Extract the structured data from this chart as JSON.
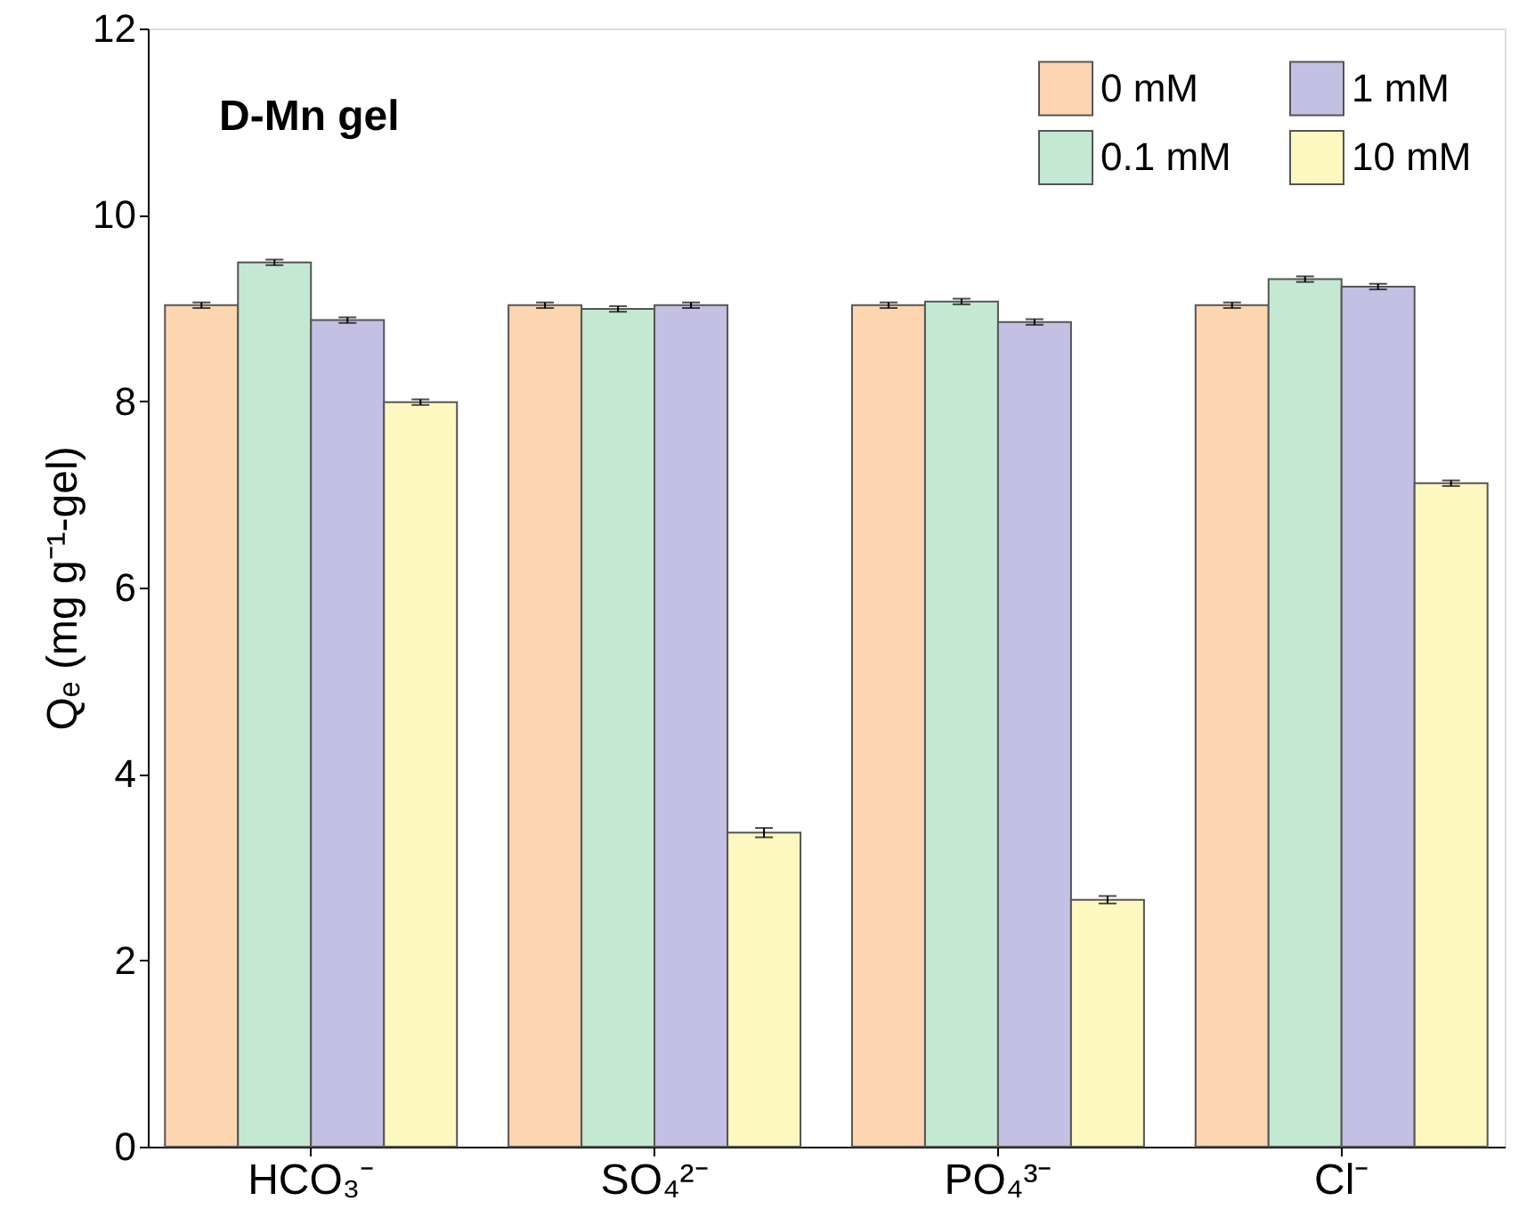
{
  "chart_data": {
    "type": "bar",
    "categories": [
      "HCO₃⁻",
      "SO₄²⁻",
      "PO₄³⁻",
      "Cl⁻"
    ],
    "series": [
      {
        "name": "0 mM",
        "color": "#fdd5b0",
        "values": [
          9.03,
          9.03,
          9.03,
          9.03
        ],
        "errors": [
          0.03,
          0.03,
          0.03,
          0.03
        ]
      },
      {
        "name": "0.1 mM",
        "color": "#c5e8d3",
        "values": [
          9.49,
          8.99,
          9.07,
          9.31
        ],
        "errors": [
          0.03,
          0.03,
          0.03,
          0.03
        ]
      },
      {
        "name": "1 mM",
        "color": "#c4c0e3",
        "values": [
          8.87,
          9.03,
          8.85,
          9.23
        ],
        "errors": [
          0.03,
          0.03,
          0.03,
          0.03
        ]
      },
      {
        "name": "10 mM",
        "color": "#fdf7c0",
        "values": [
          7.99,
          3.37,
          2.65,
          7.12
        ],
        "errors": [
          0.03,
          0.05,
          0.04,
          0.03
        ]
      }
    ],
    "ylabel": "Qₑ (mg g⁻¹-gel)",
    "ylim": [
      0,
      12
    ],
    "yticks": [
      0,
      2,
      4,
      6,
      8,
      10,
      12
    ],
    "annotations": [
      "D-Mn gel"
    ],
    "legend": "top right",
    "grid": false
  }
}
